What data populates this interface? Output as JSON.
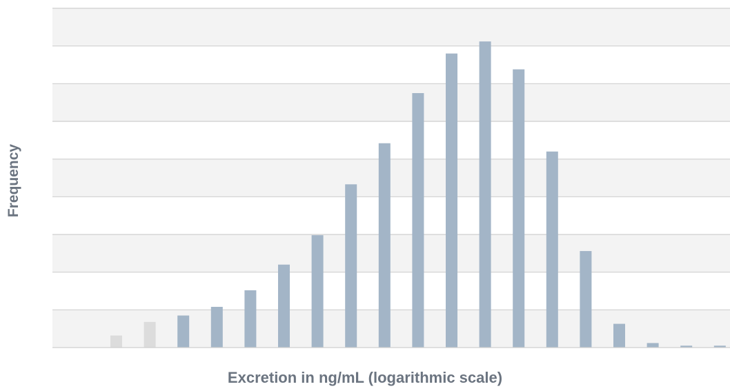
{
  "chart_data": {
    "type": "bar",
    "xlabel": "Excretion in ng/mL (logarithmic scale)",
    "ylabel": "Frequency",
    "ylim": [
      0,
      9
    ],
    "grid": true,
    "bars": [
      {
        "value": 0.32,
        "highlight": false
      },
      {
        "value": 0.68,
        "highlight": false
      },
      {
        "value": 0.85,
        "highlight": true
      },
      {
        "value": 1.08,
        "highlight": true
      },
      {
        "value": 1.52,
        "highlight": true
      },
      {
        "value": 2.2,
        "highlight": true
      },
      {
        "value": 2.98,
        "highlight": true
      },
      {
        "value": 4.33,
        "highlight": true
      },
      {
        "value": 5.42,
        "highlight": true
      },
      {
        "value": 6.75,
        "highlight": true
      },
      {
        "value": 7.8,
        "highlight": true
      },
      {
        "value": 8.12,
        "highlight": true
      },
      {
        "value": 7.38,
        "highlight": true
      },
      {
        "value": 5.2,
        "highlight": true
      },
      {
        "value": 2.56,
        "highlight": true
      },
      {
        "value": 0.63,
        "highlight": true
      },
      {
        "value": 0.12,
        "highlight": true
      },
      {
        "value": 0.05,
        "highlight": true
      },
      {
        "value": 0.05,
        "highlight": true
      }
    ]
  },
  "colors": {
    "bar": "#a3b5c7",
    "bar_muted": "#dcdcdc",
    "band_a": "#f3f3f3",
    "band_b": "#ffffff",
    "grid": "#cfcfcf",
    "label": "#6b7480"
  }
}
